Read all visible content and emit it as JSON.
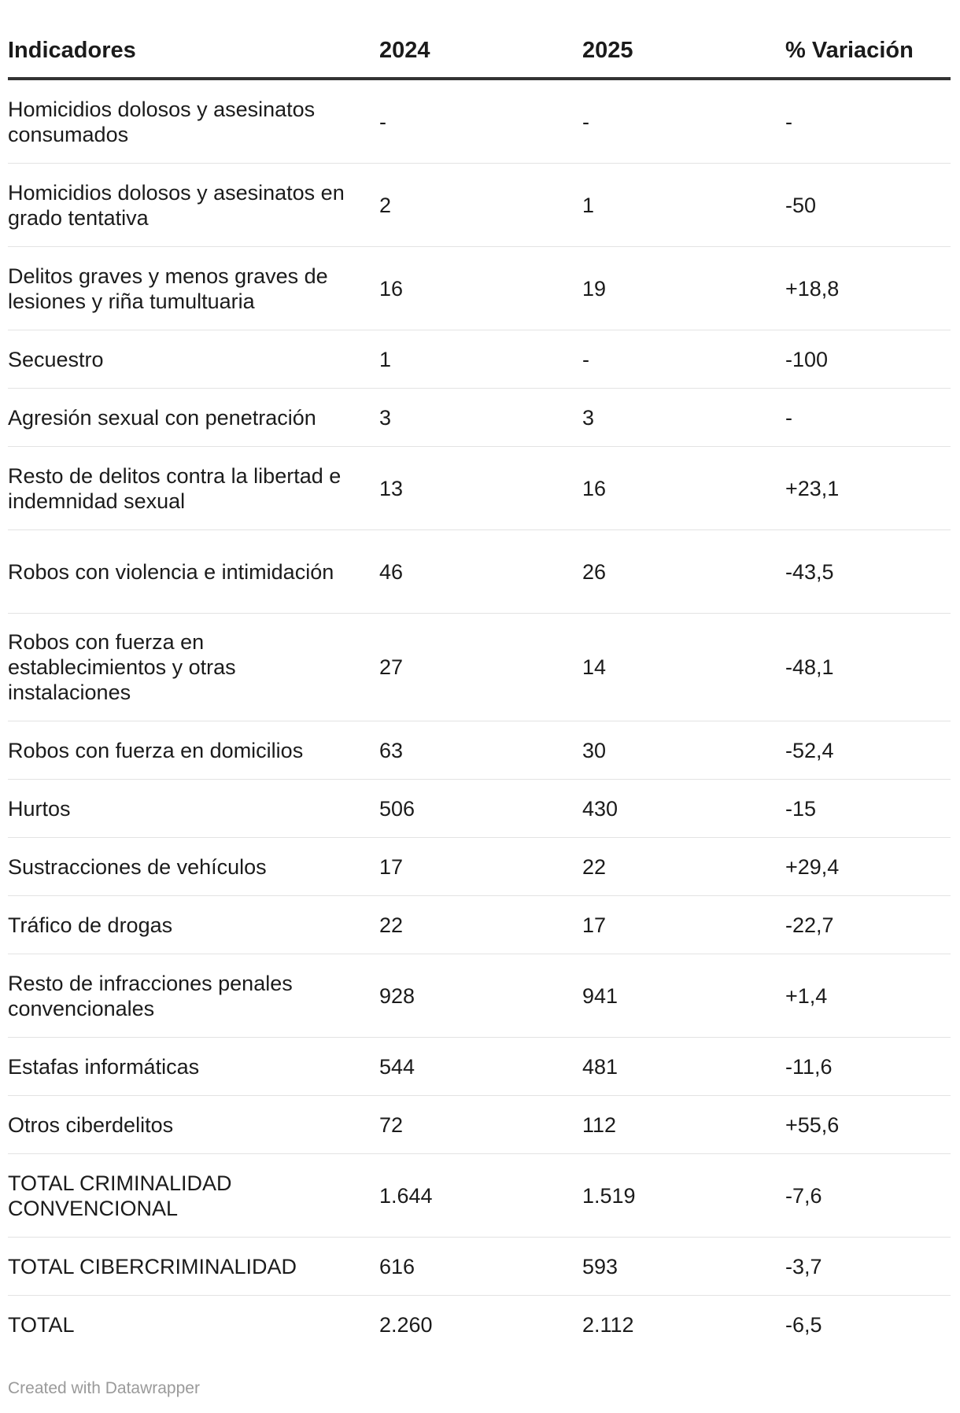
{
  "chart_data": {
    "type": "table",
    "columns": [
      "Indicadores",
      "2024",
      "2025",
      "% Variación"
    ],
    "rows": [
      {
        "indicador": "Homicidios dolosos y asesinatos consumados",
        "y2024": "-",
        "y2025": "-",
        "variacion": "-"
      },
      {
        "indicador": "Homicidios dolosos y asesinatos en grado tentativa",
        "y2024": "2",
        "y2025": "1",
        "variacion": "-50"
      },
      {
        "indicador": "Delitos graves y menos graves de lesiones y riña tumultuaria",
        "y2024": "16",
        "y2025": "19",
        "variacion": "+18,8"
      },
      {
        "indicador": "Secuestro",
        "y2024": "1",
        "y2025": "-",
        "variacion": "-100"
      },
      {
        "indicador": "Agresión sexual con penetración",
        "y2024": "3",
        "y2025": "3",
        "variacion": "-"
      },
      {
        "indicador": "Resto de delitos contra la libertad e indemnidad sexual",
        "y2024": "13",
        "y2025": "16",
        "variacion": "+23,1"
      },
      {
        "indicador": "Robos con violencia e intimidación",
        "y2024": "46",
        "y2025": "26",
        "variacion": "-43,5"
      },
      {
        "indicador": "Robos con fuerza en establecimientos y otras instalaciones",
        "y2024": "27",
        "y2025": "14",
        "variacion": "-48,1"
      },
      {
        "indicador": "Robos con fuerza en domicilios",
        "y2024": "63",
        "y2025": "30",
        "variacion": "-52,4"
      },
      {
        "indicador": "Hurtos",
        "y2024": "506",
        "y2025": "430",
        "variacion": "-15"
      },
      {
        "indicador": "Sustracciones de vehículos",
        "y2024": "17",
        "y2025": "22",
        "variacion": "+29,4"
      },
      {
        "indicador": "Tráfico de drogas",
        "y2024": "22",
        "y2025": "17",
        "variacion": "-22,7"
      },
      {
        "indicador": "Resto de infracciones penales convencionales",
        "y2024": "928",
        "y2025": "941",
        "variacion": "+1,4"
      },
      {
        "indicador": "Estafas informáticas",
        "y2024": "544",
        "y2025": "481",
        "variacion": "-11,6"
      },
      {
        "indicador": "Otros ciberdelitos",
        "y2024": "72",
        "y2025": "112",
        "variacion": "+55,6"
      },
      {
        "indicador": "TOTAL CRIMINALIDAD CONVENCIONAL",
        "y2024": "1.644",
        "y2025": "1.519",
        "variacion": "-7,6"
      },
      {
        "indicador": "TOTAL CIBERCRIMINALIDAD",
        "y2024": "616",
        "y2025": "593",
        "variacion": "-3,7"
      },
      {
        "indicador": "TOTAL",
        "y2024": "2.260",
        "y2025": "2.112",
        "variacion": "-6,5"
      }
    ]
  },
  "footer": {
    "credit": "Created with Datawrapper"
  },
  "colors": {
    "text": "#1b1b1b",
    "header_rule": "#333333",
    "row_rule": "#e3e3e3",
    "footer_text": "#9a9a9a"
  }
}
